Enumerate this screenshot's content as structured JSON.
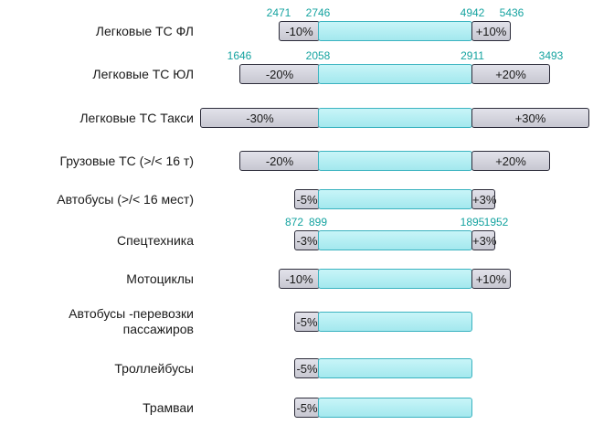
{
  "chart_data": {
    "type": "range-bar",
    "rows": [
      {
        "label": "Легковые ТС ФЛ",
        "low_pct": -10,
        "high_pct": 10,
        "low_text": "-10%",
        "high_text": "+10%",
        "values": [
          2471,
          2746,
          4942,
          5436
        ]
      },
      {
        "label": "Легковые ТС ЮЛ",
        "low_pct": -20,
        "high_pct": 20,
        "low_text": "-20%",
        "high_text": "+20%",
        "values": [
          1646,
          2058,
          2911,
          3493
        ]
      },
      {
        "label": "Легковые ТС Такси",
        "low_pct": -30,
        "high_pct": 30,
        "low_text": "-30%",
        "high_text": "+30%"
      },
      {
        "label": "Грузовые ТС (>/< 16 т)",
        "low_pct": -20,
        "high_pct": 20,
        "low_text": "-20%",
        "high_text": "+20%"
      },
      {
        "label": "Автобусы (>/< 16 мест)",
        "low_pct": -5,
        "high_pct": 3,
        "low_text": "-5%",
        "high_text": "+3%"
      },
      {
        "label": "Спецтехника",
        "low_pct": -3,
        "high_pct": 3,
        "low_text": "-3%",
        "high_text": "+3%",
        "values": [
          872,
          899,
          1895,
          1952
        ]
      },
      {
        "label": "Мотоциклы",
        "low_pct": -10,
        "high_pct": 10,
        "low_text": "-10%",
        "high_text": "+10%"
      },
      {
        "label": "Автобусы -перевозки пассажиров",
        "low_pct": -5,
        "high_pct": null,
        "low_text": "-5%",
        "high_text": ""
      },
      {
        "label": "Троллейбусы",
        "low_pct": -5,
        "high_pct": null,
        "low_text": "-5%",
        "high_text": ""
      },
      {
        "label": "Трамваи",
        "low_pct": -5,
        "high_pct": null,
        "low_text": "-5%",
        "high_text": ""
      }
    ]
  },
  "colors": {
    "core_fill": "#b4eef2",
    "core_border": "#3bb3c0",
    "ext_fill": "#d4d4dc",
    "ext_border": "#2c2c3a",
    "value_text": "#15a3a0"
  }
}
